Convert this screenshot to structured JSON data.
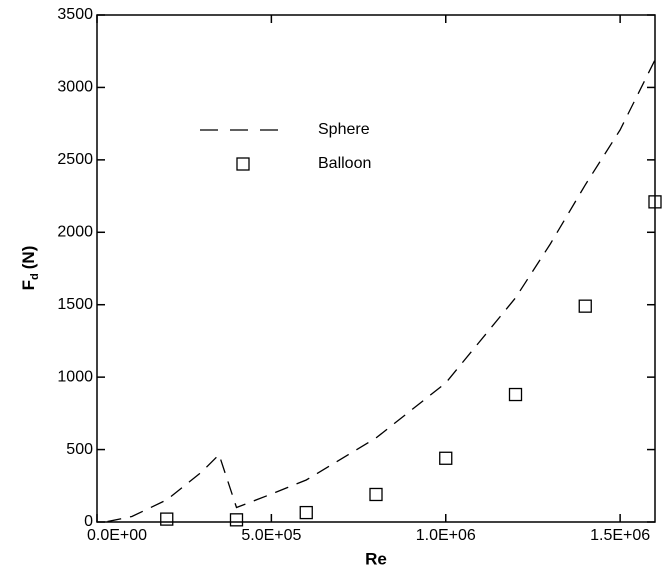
{
  "chart_data": {
    "type": "line-scatter",
    "xlabel": "Re",
    "ylabel": {
      "symbol": "F",
      "subscript": "d",
      "unit": "(N)"
    },
    "xlim": [
      0,
      1600000
    ],
    "ylim": [
      0,
      3500
    ],
    "xticks": [
      {
        "value": 0,
        "label": "0.0E+00"
      },
      {
        "value": 500000,
        "label": "5.0E+05"
      },
      {
        "value": 1000000,
        "label": "1.0E+06"
      },
      {
        "value": 1500000,
        "label": "1.5E+06"
      }
    ],
    "yticks": [
      0,
      500,
      1000,
      1500,
      2000,
      2500,
      3000,
      3500
    ],
    "legend": "upper left",
    "series": [
      {
        "name": "Sphere",
        "kind": "dashed-line",
        "color": "#000000",
        "x": [
          30000,
          100000,
          200000,
          300000,
          350000,
          400000,
          500000,
          600000,
          800000,
          1000000,
          1200000,
          1300000,
          1400000,
          1500000,
          1600000
        ],
        "values": [
          3,
          38,
          153,
          345,
          465,
          100,
          193,
          290,
          580,
          960,
          1547,
          1920,
          2327,
          2707,
          3190
        ]
      },
      {
        "name": "Balloon",
        "kind": "square-marker",
        "color": "#000000",
        "x": [
          200000,
          400000,
          600000,
          800000,
          1000000,
          1200000,
          1400000,
          1600000
        ],
        "values": [
          20,
          15,
          65,
          190,
          440,
          880,
          1490,
          2210
        ]
      }
    ]
  }
}
